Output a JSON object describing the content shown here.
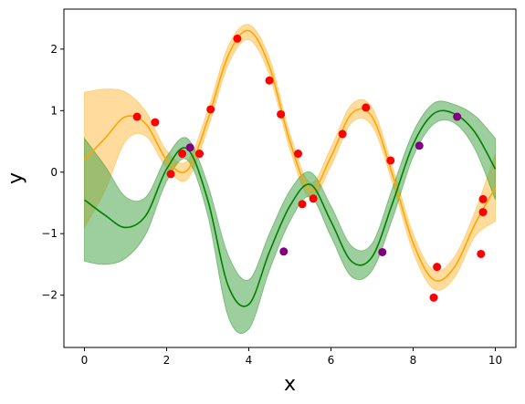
{
  "chart_data": {
    "type": "line",
    "title": "",
    "xlabel": "x",
    "ylabel": "y",
    "xlim": [
      -0.5,
      10.5
    ],
    "ylim": [
      -2.85,
      2.65
    ],
    "xticks": [
      "0",
      "2",
      "4",
      "6",
      "8",
      "10"
    ],
    "yticks": [
      "2",
      "1",
      "0",
      "−1",
      "−2"
    ],
    "grid": false,
    "series": [
      {
        "color": "#ffa500",
        "band_color": "#ffc04d",
        "x": [
          0.0,
          0.5,
          1.0,
          1.5,
          2.0,
          2.5,
          3.0,
          3.5,
          4.0,
          4.5,
          5.0,
          5.5,
          6.0,
          6.5,
          7.0,
          7.5,
          8.0,
          8.5,
          9.0,
          9.5,
          10.0
        ],
        "mean": [
          0.2,
          0.55,
          0.9,
          0.78,
          0.2,
          0.03,
          0.85,
          1.9,
          2.3,
          1.72,
          0.5,
          -0.3,
          0.25,
          0.95,
          0.9,
          -0.05,
          -1.15,
          -1.75,
          -1.55,
          -0.85,
          -0.25
        ],
        "lower": [
          -0.9,
          -0.3,
          0.5,
          0.58,
          0.07,
          -0.12,
          0.7,
          1.75,
          2.15,
          1.58,
          0.37,
          -0.43,
          0.1,
          0.8,
          0.75,
          -0.18,
          -1.3,
          -1.9,
          -1.72,
          -1.05,
          -0.8
        ],
        "upper": [
          1.3,
          1.35,
          1.3,
          0.98,
          0.35,
          0.18,
          1.0,
          2.05,
          2.4,
          1.86,
          0.63,
          -0.17,
          0.4,
          1.1,
          1.05,
          0.08,
          -1.0,
          -1.6,
          -1.38,
          -0.65,
          0.3
        ],
        "points": {
          "color": "#ff0000",
          "x": [
            1.28,
            1.72,
            2.1,
            2.38,
            2.8,
            3.07,
            3.72,
            4.5,
            4.78,
            5.2,
            6.28,
            6.85,
            7.45,
            8.5,
            8.58,
            9.65,
            9.7,
            9.7
          ],
          "y": [
            0.9,
            0.81,
            -0.03,
            0.3,
            0.3,
            1.02,
            2.17,
            1.49,
            0.94,
            0.3,
            0.62,
            1.05,
            0.19,
            -2.04,
            -1.54,
            -1.33,
            -0.44,
            -0.65
          ]
        }
      },
      {
        "color": "#008000",
        "band_color": "#4ca64c",
        "x": [
          0.0,
          0.5,
          1.0,
          1.5,
          2.0,
          2.5,
          3.0,
          3.5,
          4.0,
          4.5,
          5.0,
          5.5,
          6.0,
          6.5,
          7.0,
          7.5,
          8.0,
          8.5,
          9.0,
          9.5,
          10.0
        ],
        "mean": [
          -0.45,
          -0.7,
          -0.9,
          -0.7,
          0.05,
          0.38,
          -0.45,
          -1.85,
          -2.15,
          -1.3,
          -0.55,
          -0.2,
          -0.8,
          -1.45,
          -1.38,
          -0.5,
          0.45,
          0.95,
          0.95,
          0.65,
          0.05
        ],
        "lower": [
          -1.45,
          -1.5,
          -1.4,
          -1.0,
          -0.15,
          0.2,
          -0.7,
          -2.35,
          -2.55,
          -1.6,
          -0.8,
          -0.4,
          -1.05,
          -1.7,
          -1.6,
          -0.75,
          0.25,
          0.78,
          0.8,
          0.38,
          -0.45
        ],
        "upper": [
          0.55,
          0.1,
          -0.4,
          -0.4,
          0.25,
          0.55,
          -0.2,
          -1.35,
          -1.75,
          -1.0,
          -0.3,
          0.0,
          -0.55,
          -1.2,
          -1.16,
          -0.25,
          0.65,
          1.12,
          1.1,
          0.92,
          0.55
        ],
        "points": {
          "color": "#800080",
          "x": [
            2.57,
            4.85,
            7.25,
            8.15,
            9.07
          ],
          "y": [
            0.4,
            -1.29,
            -1.3,
            0.43,
            0.9
          ]
        }
      }
    ],
    "extra_points": {
      "color": "#ff0000",
      "x": [
        5.3,
        5.57
      ],
      "y": [
        -0.52,
        -0.43
      ]
    }
  }
}
